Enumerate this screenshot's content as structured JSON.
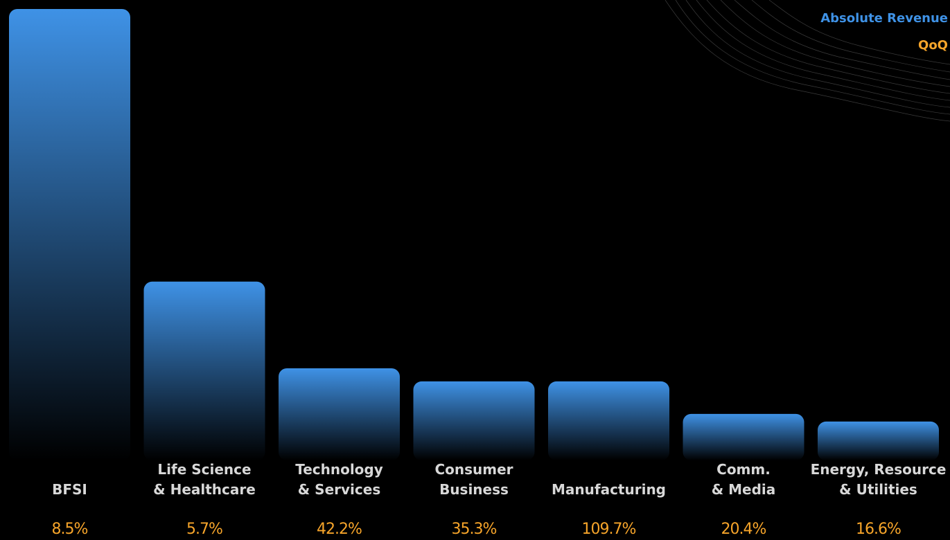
{
  "chart_data": {
    "type": "bar",
    "categories": [
      "BFSI",
      "Life Science\n& Healthcare",
      "Technology\n& Services",
      "Consumer\nBusiness",
      "Manufacturing",
      "Comm.\n& Media",
      "Energy, Resource\n& Utilities"
    ],
    "series": [
      {
        "name": "Absolute Revenue",
        "color": "#3f92e6",
        "values": [
          100,
          39.6,
          20.4,
          17.5,
          17.5,
          10.3,
          8.6
        ]
      },
      {
        "name": "QoQ",
        "color": "#f7a52a",
        "values": [
          8.5,
          5.7,
          42.2,
          35.3,
          109.7,
          20.4,
          16.6
        ],
        "value_labels": [
          "8.5%",
          "5.7%",
          "42.2%",
          "35.3%",
          "109.7%",
          "20.4%",
          "16.6%"
        ]
      }
    ],
    "ylim": [
      0,
      100
    ]
  }
}
